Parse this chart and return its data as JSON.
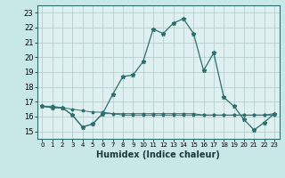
{
  "title": "",
  "xlabel": "Humidex (Indice chaleur)",
  "ylabel": "",
  "bg_color": "#c8e8e8",
  "plot_bg_color": "#dff0f0",
  "grid_color": "#b0c8c8",
  "line_color": "#2e6e6e",
  "xlim": [
    -0.5,
    23.5
  ],
  "ylim": [
    14.5,
    23.5
  ],
  "yticks": [
    15,
    16,
    17,
    18,
    19,
    20,
    21,
    22,
    23
  ],
  "xticks": [
    0,
    1,
    2,
    3,
    4,
    5,
    6,
    7,
    8,
    9,
    10,
    11,
    12,
    13,
    14,
    15,
    16,
    17,
    18,
    19,
    20,
    21,
    22,
    23
  ],
  "series1": [
    16.7,
    16.6,
    16.6,
    16.1,
    15.3,
    15.5,
    16.2,
    17.5,
    18.7,
    18.8,
    19.7,
    21.9,
    21.6,
    22.3,
    22.6,
    21.6,
    19.1,
    20.3,
    17.3,
    16.7,
    15.8,
    15.1,
    15.6,
    16.2
  ],
  "series2": [
    16.7,
    16.6,
    16.6,
    16.1,
    15.3,
    15.5,
    16.2,
    16.2,
    16.1,
    16.1,
    16.1,
    16.1,
    16.1,
    16.1,
    16.1,
    16.1,
    16.1,
    16.1,
    16.1,
    16.1,
    16.1,
    16.1,
    16.1,
    16.1
  ],
  "series3": [
    16.7,
    16.7,
    16.6,
    16.5,
    16.4,
    16.3,
    16.3,
    16.2,
    16.2,
    16.2,
    16.2,
    16.2,
    16.2,
    16.2,
    16.2,
    16.2,
    16.1,
    16.1,
    16.1,
    16.1,
    16.1,
    16.1,
    16.1,
    16.2
  ]
}
